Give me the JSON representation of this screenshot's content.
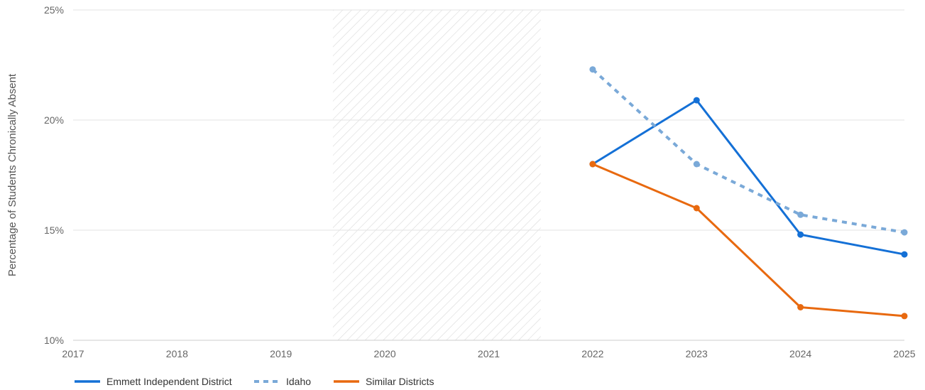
{
  "chart_data": {
    "type": "line",
    "title": "",
    "xlabel": "",
    "ylabel": "Percentage of Students Chronically Absent",
    "categories": [
      "2017",
      "2018",
      "2019",
      "2020",
      "2021",
      "2022",
      "2023",
      "2024",
      "2025"
    ],
    "ylim": [
      10,
      25
    ],
    "yticks": [
      10,
      15,
      20,
      25
    ],
    "ytick_labels": [
      "10%",
      "15%",
      "20%",
      "25%"
    ],
    "grid": true,
    "shaded_period": [
      "2019.5",
      "2021.5"
    ],
    "legend_position": "bottom-left",
    "series": [
      {
        "name": "Emmett Independent District",
        "style": "solid",
        "color": "#1470d6",
        "values": [
          null,
          null,
          null,
          null,
          null,
          18.0,
          20.9,
          14.8,
          13.9
        ]
      },
      {
        "name": "Idaho",
        "style": "dashed",
        "color": "#7aa9d8",
        "values": [
          null,
          null,
          null,
          null,
          null,
          22.3,
          18.0,
          15.7,
          14.9
        ]
      },
      {
        "name": "Similar Districts",
        "style": "solid",
        "color": "#e8690f",
        "values": [
          null,
          null,
          null,
          null,
          null,
          18.0,
          16.0,
          11.5,
          11.1
        ]
      }
    ]
  }
}
